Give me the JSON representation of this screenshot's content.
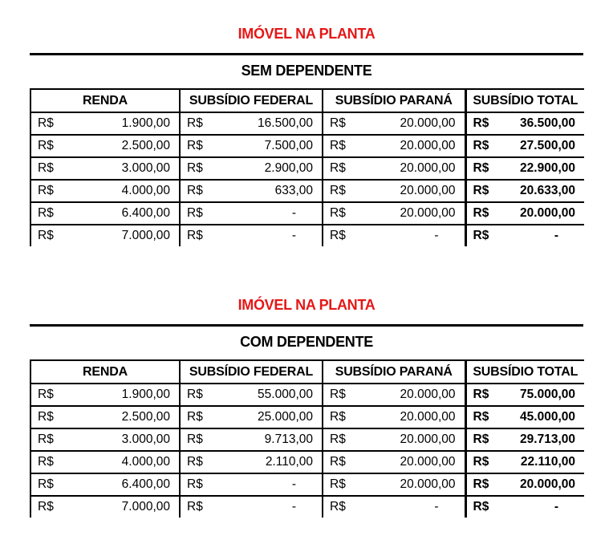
{
  "currency_symbol": "R$",
  "colors": {
    "title_red": "#e61717",
    "border_black": "#000000",
    "background": "#ffffff"
  },
  "sections": [
    {
      "title": "IMÓVEL NA PLANTA",
      "subtitle": "SEM DEPENDENTE",
      "columns": [
        "RENDA",
        "SUBSÍDIO FEDERAL",
        "SUBSÍDIO PARANÁ",
        "SUBSÍDIO TOTAL"
      ],
      "rows": [
        {
          "renda": "1.900,00",
          "subsidio_federal": "16.500,00",
          "subsidio_parana": "20.000,00",
          "subsidio_total": "36.500,00"
        },
        {
          "renda": "2.500,00",
          "subsidio_federal": "7.500,00",
          "subsidio_parana": "20.000,00",
          "subsidio_total": "27.500,00"
        },
        {
          "renda": "3.000,00",
          "subsidio_federal": "2.900,00",
          "subsidio_parana": "20.000,00",
          "subsidio_total": "22.900,00"
        },
        {
          "renda": "4.000,00",
          "subsidio_federal": "633,00",
          "subsidio_parana": "20.000,00",
          "subsidio_total": "20.633,00"
        },
        {
          "renda": "6.400,00",
          "subsidio_federal": "-",
          "subsidio_parana": "20.000,00",
          "subsidio_total": "20.000,00"
        },
        {
          "renda": "7.000,00",
          "subsidio_federal": "-",
          "subsidio_parana": "-",
          "subsidio_total": "-"
        }
      ]
    },
    {
      "title": "IMÓVEL NA PLANTA",
      "subtitle": "COM DEPENDENTE",
      "columns": [
        "RENDA",
        "SUBSÍDIO FEDERAL",
        "SUBSÍDIO PARANÁ",
        "SUBSÍDIO TOTAL"
      ],
      "rows": [
        {
          "renda": "1.900,00",
          "subsidio_federal": "55.000,00",
          "subsidio_parana": "20.000,00",
          "subsidio_total": "75.000,00"
        },
        {
          "renda": "2.500,00",
          "subsidio_federal": "25.000,00",
          "subsidio_parana": "20.000,00",
          "subsidio_total": "45.000,00"
        },
        {
          "renda": "3.000,00",
          "subsidio_federal": "9.713,00",
          "subsidio_parana": "20.000,00",
          "subsidio_total": "29.713,00"
        },
        {
          "renda": "4.000,00",
          "subsidio_federal": "2.110,00",
          "subsidio_parana": "20.000,00",
          "subsidio_total": "22.110,00"
        },
        {
          "renda": "6.400,00",
          "subsidio_federal": "-",
          "subsidio_parana": "20.000,00",
          "subsidio_total": "20.000,00"
        },
        {
          "renda": "7.000,00",
          "subsidio_federal": "-",
          "subsidio_parana": "-",
          "subsidio_total": "-"
        }
      ]
    }
  ]
}
